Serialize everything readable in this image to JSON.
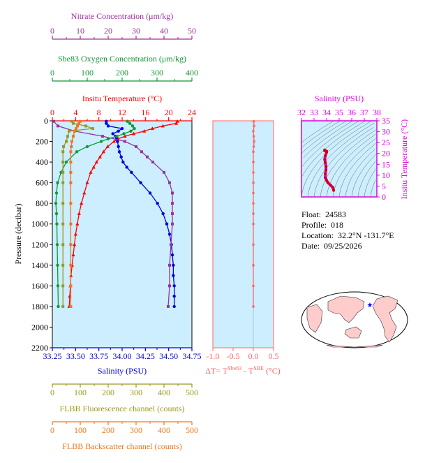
{
  "colors": {
    "nitrate": "#993399",
    "oxygen": "#119933",
    "temperature": "#ff0000",
    "salinity": "#0000dd",
    "chlorophyll": "#999922",
    "backscatter": "#ee7722",
    "delta_t": "#ff6666",
    "ts_axis": "#dd00dd",
    "panel_bg": "#cceeff"
  },
  "info": {
    "float_label": "Float:",
    "float_value": "24583",
    "profile_label": "Profile:",
    "profile_value": "018",
    "location_label": "Location:",
    "location_value": "32.2°N  -131.7°E",
    "date_label": "Date:",
    "date_value": "09/25/2026"
  },
  "chart_data": [
    {
      "type": "line",
      "panel": "profile",
      "ylabel": "Pressure (decibar)",
      "ylim": [
        2200,
        0
      ],
      "yticks": [
        "0",
        "200",
        "400",
        "600",
        "800",
        "1000",
        "1200",
        "1400",
        "1600",
        "1800",
        "2000",
        "2200"
      ],
      "axes": {
        "nitrate": {
          "label": "Nitrate Concentration (μm/kg)",
          "lim": [
            0,
            50
          ],
          "ticks": [
            "0",
            "10",
            "20",
            "30",
            "40",
            "50"
          ]
        },
        "oxygen": {
          "label": "Sbe83 Oxygen Concentration (μm/kg)",
          "lim": [
            0,
            400
          ],
          "ticks": [
            "0",
            "100",
            "200",
            "300",
            "400"
          ]
        },
        "temperature": {
          "label": "Insitu Temperature (°C)",
          "lim": [
            0,
            24
          ],
          "ticks": [
            "0",
            "4",
            "8",
            "12",
            "16",
            "20",
            "24"
          ]
        },
        "salinity": {
          "label": "Salinity (PSU)",
          "lim": [
            33.25,
            34.75
          ],
          "ticks": [
            "33.25",
            "33.50",
            "33.75",
            "34.00",
            "34.25",
            "34.50",
            "34.75"
          ]
        },
        "chlorophyll": {
          "label": "FLBB Fluorescence channel (counts)",
          "lim": [
            0,
            500
          ],
          "ticks": [
            "0",
            "100",
            "200",
            "300",
            "400",
            "500"
          ]
        },
        "backscatter": {
          "label": "FLBB Backscatter channel (counts)",
          "lim": [
            0,
            500
          ],
          "ticks": [
            "0",
            "100",
            "200",
            "300",
            "400",
            "500"
          ]
        }
      },
      "series": [
        {
          "key": "temperature",
          "pressure": [
            5,
            25,
            50,
            75,
            100,
            125,
            150,
            175,
            200,
            250,
            300,
            350,
            400,
            450,
            500,
            600,
            700,
            800,
            900,
            1000,
            1100,
            1200,
            1300,
            1400,
            1500,
            1600,
            1700,
            1800
          ],
          "values": [
            21.5,
            21.3,
            19.0,
            17.2,
            15.8,
            14.0,
            12.5,
            11.3,
            10.6,
            9.5,
            8.8,
            8.2,
            7.6,
            7.1,
            6.6,
            6.0,
            5.5,
            5.0,
            4.6,
            4.3,
            4.0,
            3.8,
            3.6,
            3.4,
            3.2,
            3.1,
            3.0,
            2.9
          ]
        },
        {
          "key": "salinity",
          "pressure": [
            5,
            25,
            50,
            75,
            100,
            125,
            150,
            175,
            200,
            250,
            300,
            350,
            400,
            450,
            500,
            600,
            700,
            800,
            900,
            1000,
            1100,
            1200,
            1300,
            1400,
            1500,
            1600,
            1700,
            1800
          ],
          "values": [
            33.83,
            33.83,
            33.85,
            34.0,
            33.96,
            33.9,
            33.93,
            33.94,
            33.95,
            33.96,
            33.97,
            33.99,
            34.01,
            34.05,
            34.1,
            34.2,
            34.3,
            34.38,
            34.44,
            34.48,
            34.51,
            34.53,
            34.54,
            34.55,
            34.55,
            34.56,
            34.56,
            34.56
          ]
        },
        {
          "key": "nitrate",
          "pressure": [
            5,
            50,
            100,
            150,
            200,
            250,
            300,
            350,
            400,
            500,
            600,
            700,
            800,
            900,
            1000,
            1200,
            1400,
            1600,
            1800
          ],
          "values": [
            0.5,
            2.0,
            8.0,
            18.0,
            26.0,
            30.0,
            32.0,
            34.0,
            36.0,
            40.0,
            42.0,
            43.0,
            43.0,
            43.0,
            43.0,
            42.5,
            42.0,
            42.0,
            41.5
          ]
        },
        {
          "key": "oxygen",
          "pressure": [
            5,
            25,
            50,
            75,
            100,
            125,
            150,
            175,
            200,
            250,
            300,
            400,
            500,
            600,
            700,
            800,
            900,
            1000,
            1200,
            1400,
            1600,
            1800
          ],
          "values": [
            215,
            222,
            230,
            235,
            225,
            205,
            185,
            160,
            140,
            100,
            70,
            40,
            25,
            15,
            12,
            10,
            12,
            13,
            14,
            15,
            16,
            17
          ]
        },
        {
          "key": "chlorophyll",
          "pressure": [
            5,
            25,
            50,
            75,
            100,
            150,
            200,
            250,
            300,
            400,
            500,
            600,
            800,
            1000,
            1200,
            1400,
            1600,
            1800
          ],
          "values": [
            70,
            75,
            120,
            145,
            60,
            55,
            50,
            40,
            38,
            38,
            38,
            38,
            38,
            38,
            38,
            38,
            38,
            38
          ]
        },
        {
          "key": "backscatter",
          "pressure": [
            5,
            25,
            50,
            75,
            100,
            150,
            200,
            250,
            300,
            400,
            500,
            600,
            800,
            1000,
            1200,
            1400,
            1600,
            1800
          ],
          "values": [
            100,
            95,
            90,
            85,
            80,
            75,
            70,
            68,
            66,
            66,
            66,
            66,
            66,
            66,
            66,
            66,
            66,
            66
          ]
        }
      ]
    },
    {
      "type": "line",
      "panel": "delta_t",
      "xlabel": "ΔT= T",
      "xlabel_sup1": "Sbe83",
      "xlabel_mid": " - T",
      "xlabel_sup2": "SBE",
      "xlabel_end": " (°C)",
      "xlim": [
        -1.0,
        0.5
      ],
      "xticks": [
        "-1.0",
        "-0.5",
        "0.0",
        "0.5"
      ],
      "ylim": [
        2200,
        0
      ],
      "series": [
        {
          "name": "ΔT",
          "pressure": [
            5,
            50,
            100,
            150,
            200,
            250,
            300,
            400,
            500,
            600,
            700,
            800,
            900,
            1000,
            1200,
            1400,
            1600,
            1800
          ],
          "values": [
            0.01,
            0.02,
            0.0,
            0.01,
            0.02,
            0.01,
            0.0,
            0.0,
            0.0,
            0.0,
            0.0,
            0.0,
            0.0,
            0.0,
            0.0,
            0.0,
            0.0,
            0.0
          ]
        }
      ]
    },
    {
      "type": "line",
      "panel": "ts",
      "title": "Salinity (PSU)",
      "xticks": [
        "32",
        "33",
        "34",
        "35",
        "36",
        "37",
        "38"
      ],
      "xlim": [
        32,
        38
      ],
      "ylabel": "Insitu Temperature (°C)",
      "yticks": [
        "0",
        "5",
        "10",
        "15",
        "20",
        "25",
        "30",
        "35"
      ],
      "ylim": [
        0,
        35
      ],
      "series": [
        {
          "name": "T-S",
          "salinity": [
            34.56,
            34.5,
            34.3,
            34.1,
            34.0,
            33.9,
            33.9,
            33.95,
            33.95,
            33.9,
            33.85,
            33.9,
            34.0,
            34.0,
            33.85,
            33.83
          ],
          "temperature": [
            3.0,
            4.3,
            5.5,
            6.6,
            7.6,
            8.8,
            10.6,
            12.5,
            14.0,
            15.8,
            17.2,
            19.0,
            20.5,
            21.0,
            21.5,
            21.3
          ]
        }
      ]
    }
  ]
}
